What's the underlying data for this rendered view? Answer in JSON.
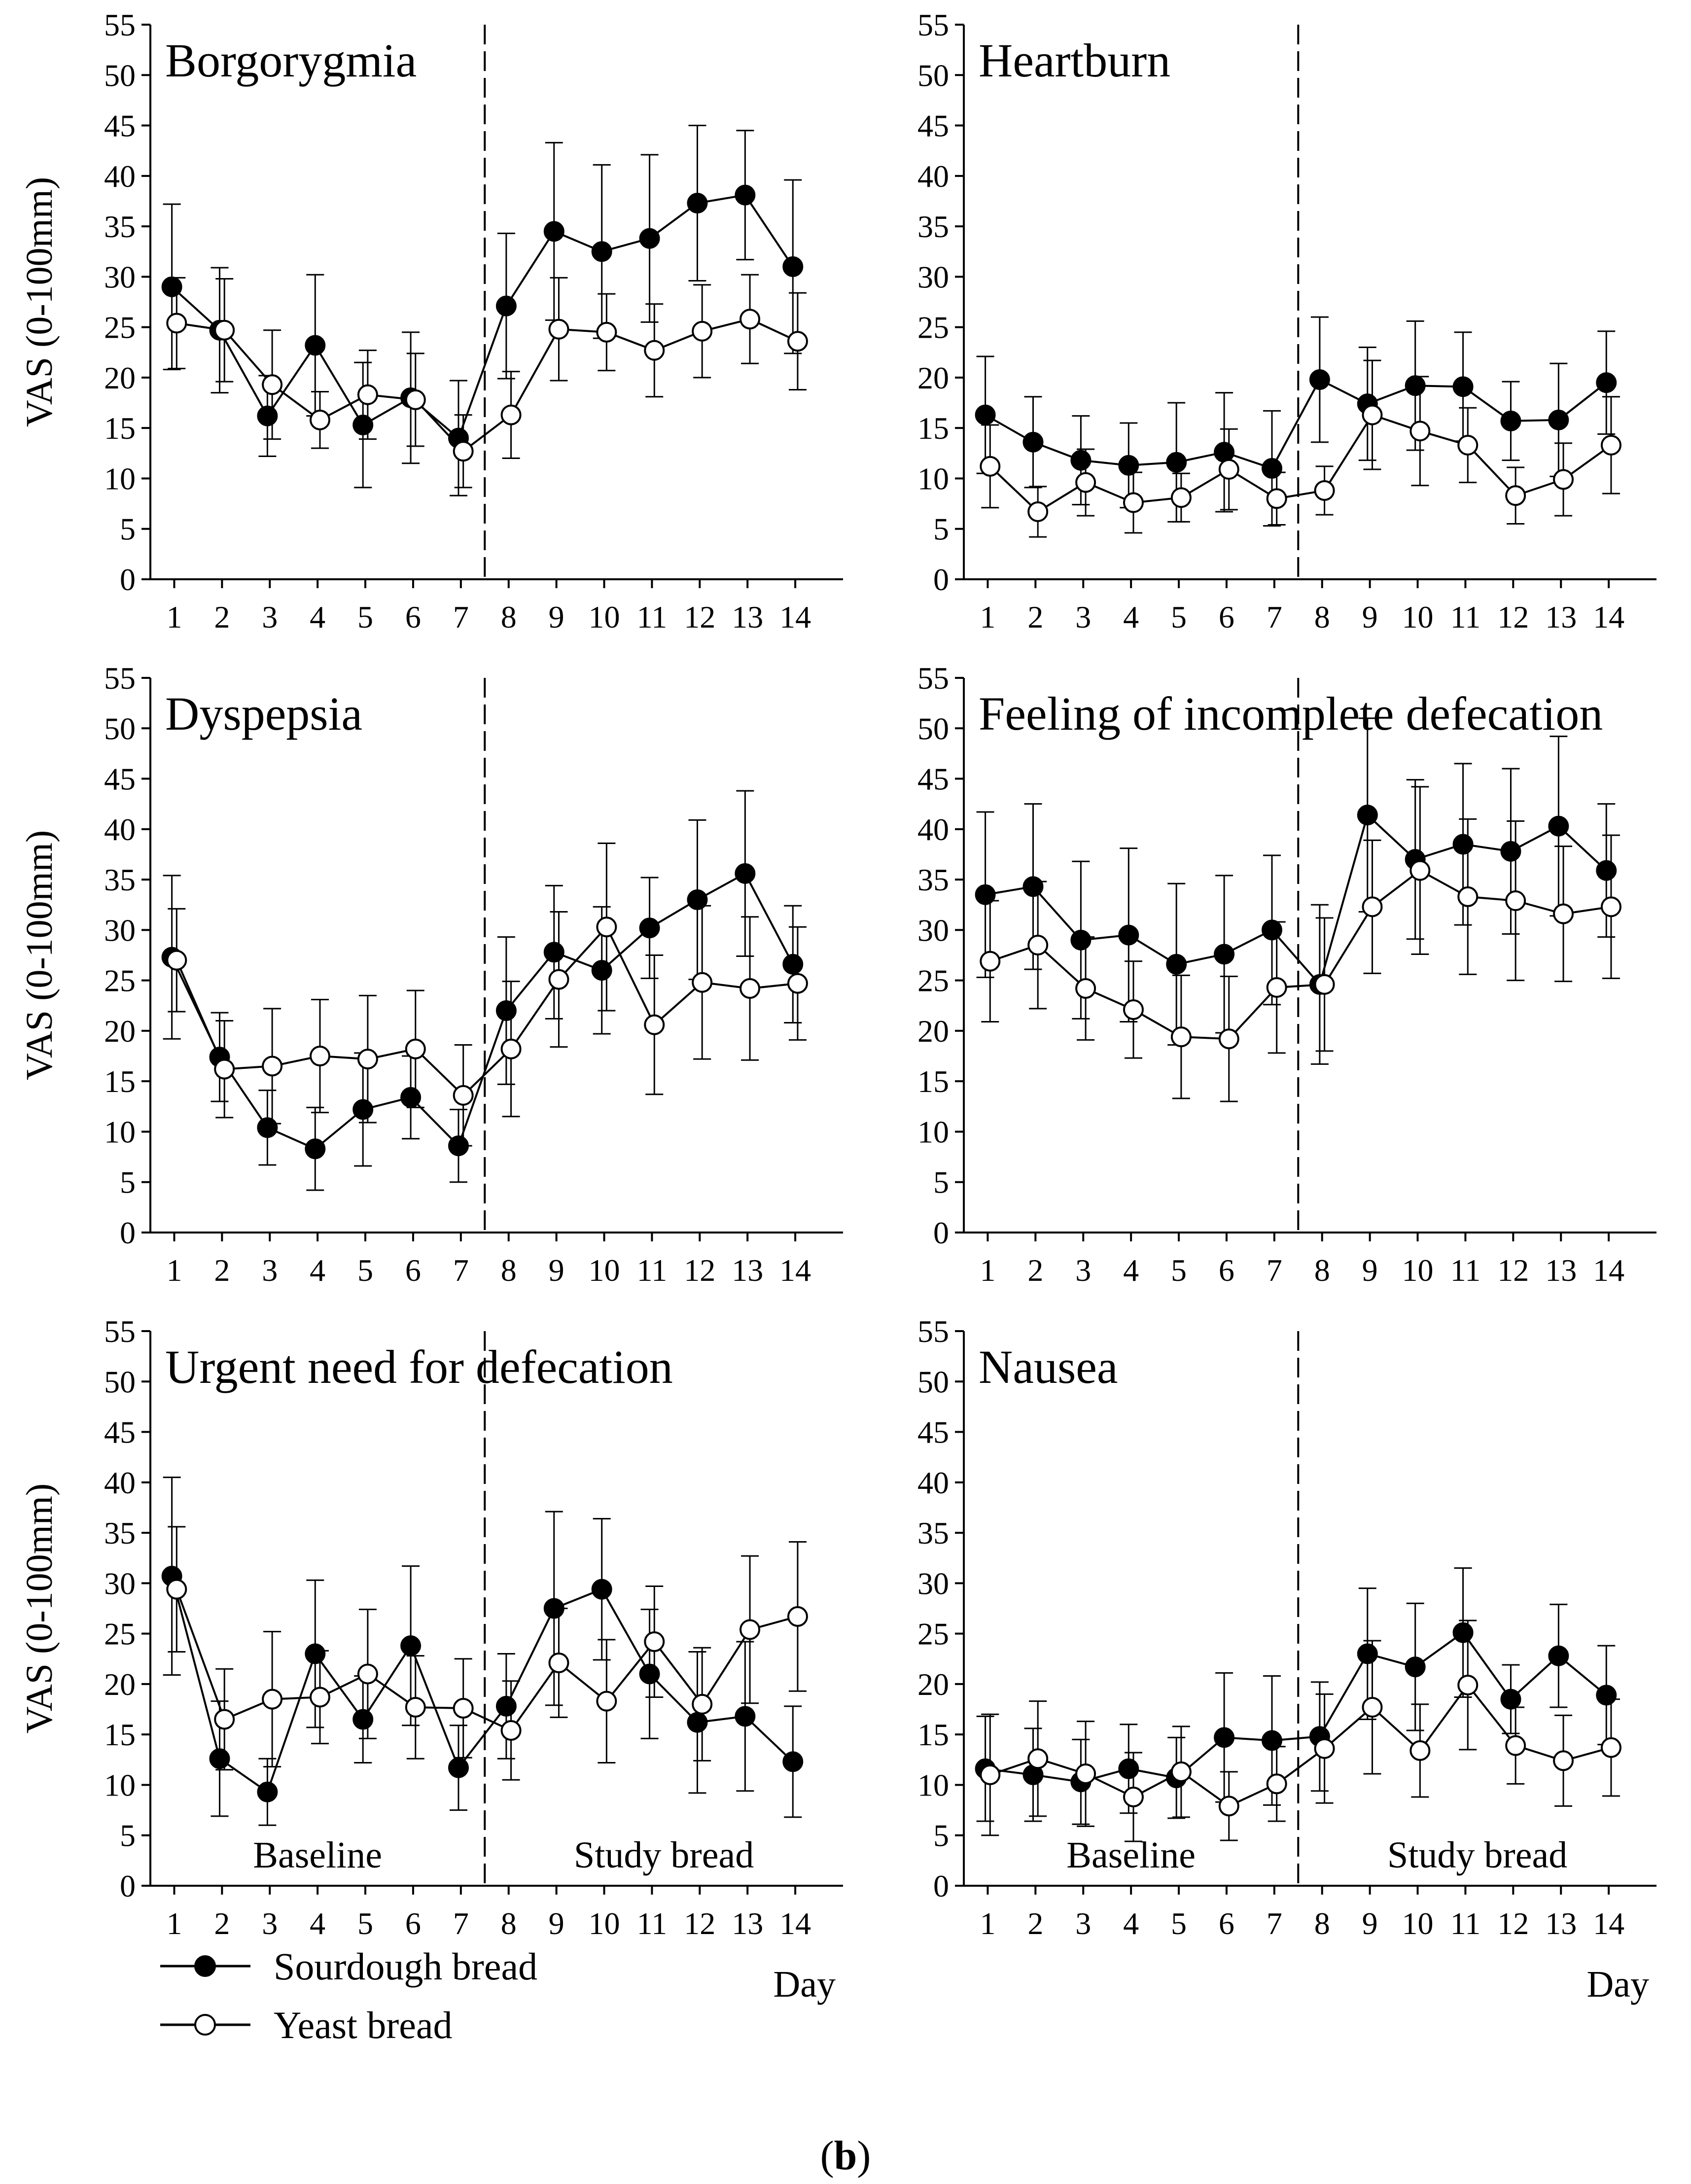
{
  "figure": {
    "caption_open": "(",
    "caption_letter": "b",
    "caption_close": ")"
  },
  "legend": [
    {
      "name": "Sourdough bread",
      "fill": "#000000"
    },
    {
      "name": "Yeast bread",
      "fill": "#ffffff"
    }
  ],
  "chart_data": [
    {
      "type": "line",
      "title": "Borgorygmia",
      "ylabel": "VAS (0-100mm)",
      "xlabel": "",
      "ylim": [
        0,
        55
      ],
      "yticks": [
        0,
        5,
        10,
        15,
        20,
        25,
        30,
        35,
        40,
        45,
        50,
        55
      ],
      "x": [
        1,
        2,
        3,
        4,
        5,
        6,
        7,
        8,
        9,
        10,
        11,
        12,
        13,
        14
      ],
      "divider_at": 7.5,
      "phase_labels": [],
      "series": [
        {
          "name": "Sourdough bread",
          "values": [
            29.0,
            24.7,
            16.2,
            23.2,
            15.3,
            18.0,
            14.0,
            27.1,
            34.5,
            32.5,
            33.8,
            37.3,
            38.1,
            31.0
          ],
          "errors": [
            8.2,
            6.2,
            4.0,
            7.0,
            6.2,
            6.5,
            5.7,
            7.2,
            8.8,
            8.6,
            8.3,
            7.7,
            6.4,
            8.6
          ]
        },
        {
          "name": "Yeast bread",
          "values": [
            25.4,
            24.7,
            19.3,
            15.8,
            18.3,
            17.8,
            12.7,
            16.3,
            24.8,
            24.5,
            22.7,
            24.6,
            25.8,
            23.6
          ],
          "errors": [
            4.5,
            5.1,
            5.4,
            2.8,
            4.4,
            4.6,
            3.6,
            4.3,
            5.1,
            3.8,
            4.6,
            4.6,
            4.4,
            4.8
          ]
        }
      ]
    },
    {
      "type": "line",
      "title": "Heartburn",
      "ylabel": "",
      "xlabel": "",
      "ylim": [
        0,
        55
      ],
      "yticks": [
        0,
        5,
        10,
        15,
        20,
        25,
        30,
        35,
        40,
        45,
        50,
        55
      ],
      "x": [
        1,
        2,
        3,
        4,
        5,
        6,
        7,
        8,
        9,
        10,
        11,
        12,
        13,
        14
      ],
      "divider_at": 7.5,
      "phase_labels": [],
      "series": [
        {
          "name": "Sourdough bread",
          "values": [
            16.3,
            13.6,
            11.8,
            11.3,
            11.6,
            12.6,
            11.0,
            19.8,
            17.4,
            19.2,
            19.1,
            15.7,
            15.8,
            19.5
          ],
          "errors": [
            5.8,
            4.5,
            4.4,
            4.2,
            5.9,
            5.9,
            5.7,
            6.2,
            5.6,
            6.4,
            5.4,
            3.9,
            5.6,
            5.1
          ]
        },
        {
          "name": "Yeast bread",
          "values": [
            11.2,
            6.7,
            9.6,
            7.6,
            8.1,
            10.9,
            8.0,
            8.8,
            16.3,
            14.7,
            13.3,
            8.3,
            9.9,
            13.3
          ],
          "errors": [
            4.1,
            2.5,
            3.3,
            3.0,
            2.4,
            4.0,
            2.6,
            2.4,
            5.4,
            5.4,
            3.7,
            2.8,
            3.6,
            4.8
          ]
        }
      ]
    },
    {
      "type": "line",
      "title": "Dyspepsia",
      "ylabel": "VAS (0-100mm)",
      "xlabel": "",
      "ylim": [
        0,
        55
      ],
      "yticks": [
        0,
        5,
        10,
        15,
        20,
        25,
        30,
        35,
        40,
        45,
        50,
        55
      ],
      "x": [
        1,
        2,
        3,
        4,
        5,
        6,
        7,
        8,
        9,
        10,
        11,
        12,
        13,
        14
      ],
      "divider_at": 7.5,
      "phase_labels": [],
      "series": [
        {
          "name": "Sourdough bread",
          "values": [
            27.3,
            17.4,
            10.4,
            8.3,
            12.2,
            13.4,
            8.6,
            22.0,
            27.8,
            26.0,
            30.2,
            33.0,
            35.6,
            26.6
          ],
          "errors": [
            8.1,
            4.4,
            3.7,
            4.1,
            5.6,
            4.1,
            3.6,
            7.3,
            6.6,
            6.3,
            5.0,
            7.9,
            8.2,
            5.8
          ]
        },
        {
          "name": "Yeast bread",
          "values": [
            27.0,
            16.2,
            16.5,
            17.5,
            17.2,
            18.2,
            13.6,
            18.2,
            25.1,
            30.3,
            20.6,
            24.8,
            24.2,
            24.7
          ],
          "errors": [
            5.1,
            4.8,
            5.7,
            5.6,
            6.3,
            5.8,
            5.0,
            6.7,
            6.7,
            8.3,
            6.9,
            7.6,
            7.1,
            5.6
          ]
        }
      ]
    },
    {
      "type": "line",
      "title": "Feeling of incomplete defecation",
      "ylabel": "",
      "xlabel": "",
      "ylim": [
        0,
        55
      ],
      "yticks": [
        0,
        5,
        10,
        15,
        20,
        25,
        30,
        35,
        40,
        45,
        50,
        55
      ],
      "x": [
        1,
        2,
        3,
        4,
        5,
        6,
        7,
        8,
        9,
        10,
        11,
        12,
        13,
        14
      ],
      "divider_at": 7.5,
      "phase_labels": [],
      "series": [
        {
          "name": "Sourdough bread",
          "values": [
            33.5,
            34.3,
            29.0,
            29.5,
            26.6,
            27.6,
            30.0,
            24.6,
            41.4,
            37.0,
            38.5,
            37.8,
            40.3,
            35.9
          ],
          "errors": [
            8.2,
            8.2,
            7.8,
            8.6,
            8.0,
            7.8,
            7.4,
            7.9,
            9.6,
            7.9,
            8.0,
            8.2,
            8.9,
            6.6
          ]
        },
        {
          "name": "Yeast bread",
          "values": [
            26.9,
            28.5,
            24.2,
            22.1,
            19.4,
            19.2,
            24.3,
            24.6,
            32.3,
            35.9,
            33.3,
            32.9,
            31.6,
            32.3
          ],
          "errors": [
            6.0,
            6.3,
            5.1,
            4.8,
            6.1,
            6.2,
            6.5,
            6.6,
            6.6,
            8.3,
            7.7,
            7.9,
            6.7,
            7.1
          ]
        }
      ]
    },
    {
      "type": "line",
      "title": "Urgent need for defecation",
      "ylabel": "VAS (0-100mm)",
      "xlabel": "Day",
      "ylim": [
        0,
        55
      ],
      "yticks": [
        0,
        5,
        10,
        15,
        20,
        25,
        30,
        35,
        40,
        45,
        50,
        55
      ],
      "x": [
        1,
        2,
        3,
        4,
        5,
        6,
        7,
        8,
        9,
        10,
        11,
        12,
        13,
        14
      ],
      "divider_at": 7.5,
      "phase_labels": [
        "Baseline",
        "Study bread"
      ],
      "series": [
        {
          "name": "Sourdough bread",
          "values": [
            30.7,
            12.6,
            9.3,
            23.0,
            16.5,
            23.8,
            11.7,
            17.8,
            27.5,
            29.4,
            21.0,
            16.2,
            16.8,
            12.3
          ],
          "errors": [
            9.8,
            5.7,
            3.3,
            7.3,
            4.3,
            7.9,
            4.2,
            5.2,
            9.6,
            7.0,
            6.4,
            7.0,
            7.4,
            5.5
          ]
        },
        {
          "name": "Yeast bread",
          "values": [
            29.4,
            16.5,
            18.5,
            18.7,
            21.0,
            17.7,
            17.6,
            15.4,
            22.1,
            18.3,
            24.2,
            18.0,
            25.4,
            26.7
          ],
          "errors": [
            6.2,
            5.0,
            6.7,
            4.6,
            6.4,
            5.1,
            4.9,
            4.9,
            5.4,
            6.1,
            5.5,
            5.6,
            7.3,
            7.4
          ]
        }
      ]
    },
    {
      "type": "line",
      "title": "Nausea",
      "ylabel": "",
      "xlabel": "Day",
      "ylim": [
        0,
        55
      ],
      "yticks": [
        0,
        5,
        10,
        15,
        20,
        25,
        30,
        35,
        40,
        45,
        50,
        55
      ],
      "x": [
        1,
        2,
        3,
        4,
        5,
        6,
        7,
        8,
        9,
        10,
        11,
        12,
        13,
        14
      ],
      "divider_at": 7.5,
      "phase_labels": [
        "Baseline",
        "Study bread"
      ],
      "series": [
        {
          "name": "Sourdough bread",
          "values": [
            11.6,
            11.0,
            10.3,
            11.6,
            10.7,
            14.7,
            14.4,
            14.8,
            23.0,
            21.7,
            25.1,
            18.5,
            22.8,
            18.9
          ],
          "errors": [
            5.2,
            4.6,
            4.2,
            4.4,
            4.0,
            6.4,
            6.4,
            5.4,
            6.5,
            6.3,
            6.4,
            3.4,
            5.1,
            4.9
          ]
        },
        {
          "name": "Yeast bread",
          "values": [
            11.0,
            12.6,
            11.1,
            8.8,
            11.3,
            7.9,
            10.1,
            13.6,
            17.7,
            13.4,
            19.9,
            13.9,
            12.4,
            13.7
          ],
          "errors": [
            6.0,
            5.7,
            5.2,
            4.4,
            4.5,
            3.4,
            3.7,
            5.4,
            6.6,
            4.6,
            6.4,
            3.8,
            4.5,
            4.8
          ]
        }
      ]
    }
  ]
}
